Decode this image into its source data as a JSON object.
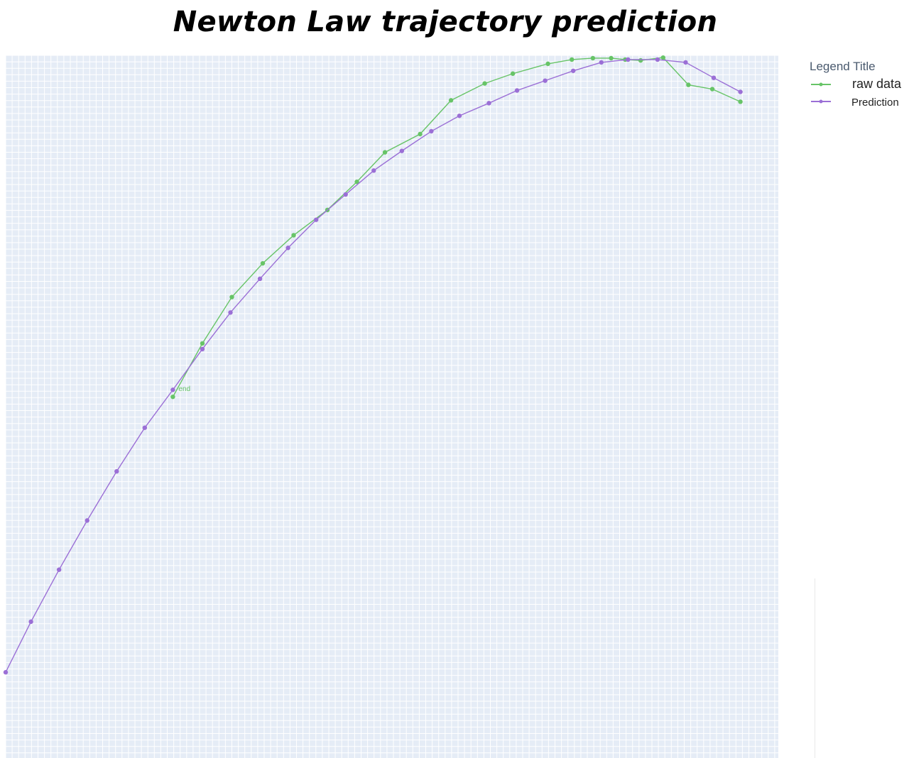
{
  "chart_data": {
    "type": "line",
    "title": "Newton Law trajectory prediction",
    "xlabel": "",
    "ylabel": "",
    "grid": true,
    "legend": {
      "title": "Legend Title",
      "position": "top-right"
    },
    "annotation": {
      "text": "end",
      "x": 5.95,
      "y": 12.85
    },
    "xlim": [
      0,
      27.5
    ],
    "ylim": [
      0,
      25
    ],
    "series": [
      {
        "name": "raw data",
        "color": "#67c467",
        "x": [
          5.95,
          7.0,
          8.05,
          9.15,
          10.25,
          11.45,
          12.5,
          13.5,
          14.75,
          15.85,
          17.05,
          18.05,
          19.3,
          20.15,
          20.9,
          21.55,
          22.05,
          22.6,
          23.4,
          24.3,
          25.15,
          26.15
        ],
        "y": [
          12.85,
          14.75,
          16.4,
          17.6,
          18.6,
          19.5,
          20.5,
          21.55,
          22.2,
          23.4,
          24.0,
          24.35,
          24.7,
          24.85,
          24.9,
          24.9,
          24.85,
          24.82,
          24.92,
          23.95,
          23.8,
          23.35
        ]
      },
      {
        "name": "Prediction",
        "color": "#9b6fd6",
        "x": [
          0.0,
          0.9,
          1.9,
          2.9,
          3.95,
          4.95,
          5.95,
          7.0,
          8.0,
          9.05,
          10.05,
          11.05,
          12.1,
          13.1,
          14.1,
          15.15,
          16.15,
          17.2,
          18.2,
          19.2,
          20.2,
          21.2,
          22.15,
          23.2,
          24.2,
          25.2,
          26.15
        ],
        "y": [
          3.05,
          4.85,
          6.7,
          8.45,
          10.2,
          11.75,
          13.1,
          14.55,
          15.85,
          17.05,
          18.15,
          19.15,
          20.05,
          20.9,
          21.6,
          22.3,
          22.85,
          23.3,
          23.75,
          24.1,
          24.45,
          24.75,
          24.85,
          24.85,
          24.75,
          24.2,
          23.7
        ]
      }
    ]
  }
}
